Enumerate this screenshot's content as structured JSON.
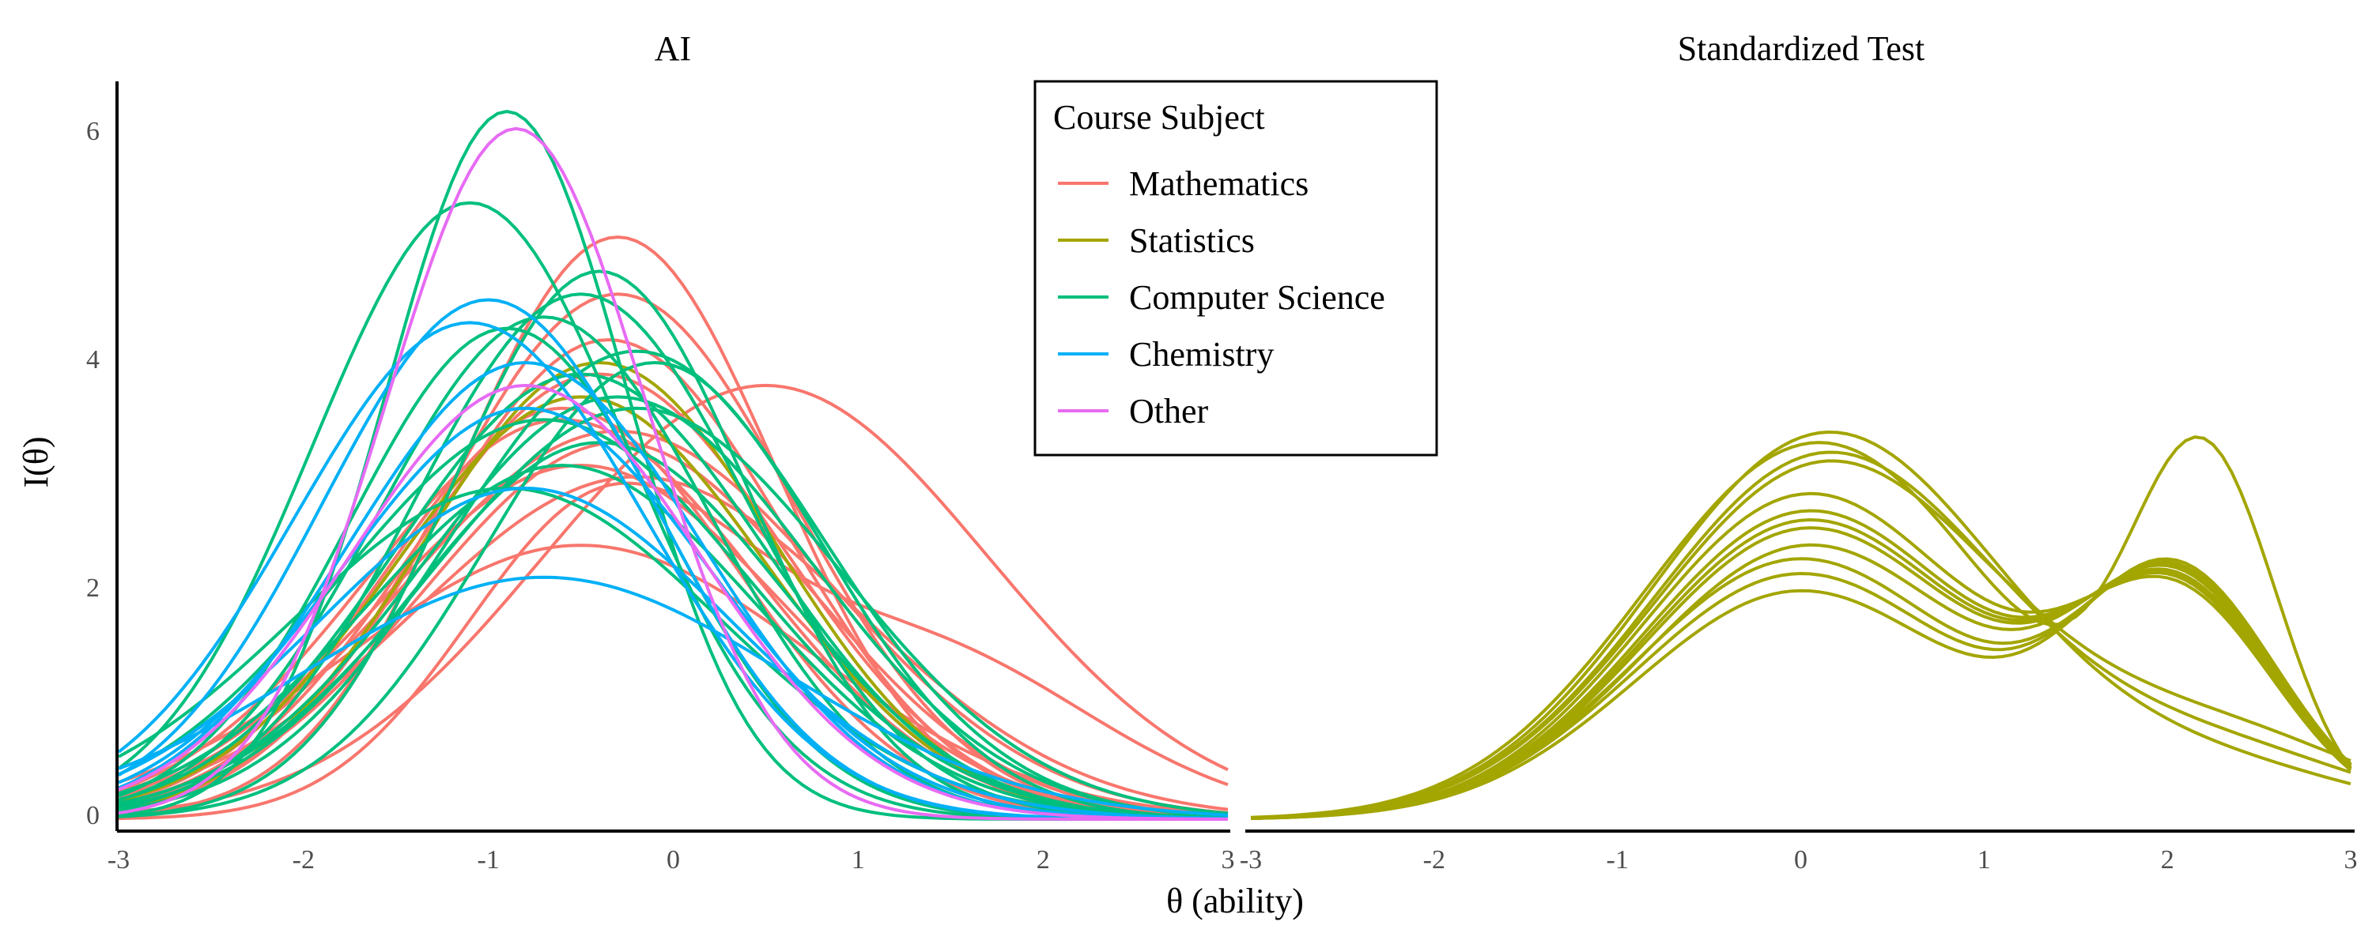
{
  "chart_data": {
    "type": "line",
    "y_axis_title": "I(θ)",
    "x_axis_title": "θ (ability)",
    "legend": {
      "title": "Course Subject",
      "placement": "top-center",
      "entries": [
        {
          "name": "Mathematics",
          "color": "#F8766D"
        },
        {
          "name": "Statistics",
          "color": "#A3A500"
        },
        {
          "name": "Computer Science",
          "color": "#00BF7D"
        },
        {
          "name": "Chemistry",
          "color": "#00B0F6"
        },
        {
          "name": "Other",
          "color": "#E76BF3"
        }
      ]
    },
    "xlim": [
      -3,
      3
    ],
    "ylim": [
      0,
      6.5
    ],
    "x_ticks": [
      -3,
      -2,
      -1,
      0,
      1,
      2,
      3
    ],
    "x_tick_labels": [
      "-3",
      "-2",
      "-1",
      "0",
      "1",
      "2",
      "3"
    ],
    "y_ticks": [
      0,
      2,
      4,
      6
    ],
    "y_tick_labels": [
      "0",
      "2",
      "4",
      "6"
    ],
    "grid": false,
    "panels": [
      {
        "title": "AI",
        "x_tick_labels": [
          "-3",
          "-2",
          "-1",
          "0",
          "1",
          "2",
          "3"
        ],
        "series": [
          {
            "subject": "Mathematics",
            "components": [
              [
                5.1,
                -0.3,
                0.85
              ]
            ]
          },
          {
            "subject": "Mathematics",
            "components": [
              [
                4.6,
                -0.3,
                0.95
              ]
            ]
          },
          {
            "subject": "Mathematics",
            "components": [
              [
                4.2,
                -0.35,
                0.95
              ]
            ]
          },
          {
            "subject": "Mathematics",
            "components": [
              [
                3.9,
                -0.4,
                1.0
              ]
            ]
          },
          {
            "subject": "Mathematics",
            "components": [
              [
                3.7,
                -0.5,
                1.0
              ]
            ]
          },
          {
            "subject": "Mathematics",
            "components": [
              [
                3.5,
                -0.6,
                1.05
              ]
            ]
          },
          {
            "subject": "Mathematics",
            "components": [
              [
                3.3,
                -0.3,
                1.05
              ]
            ]
          },
          {
            "subject": "Mathematics",
            "components": [
              [
                3.1,
                -0.5,
                1.1
              ]
            ]
          },
          {
            "subject": "Mathematics",
            "components": [
              [
                2.6,
                -0.4,
                0.75
              ],
              [
                1.5,
                1.3,
                0.95
              ]
            ]
          },
          {
            "subject": "Mathematics",
            "components": [
              [
                2.4,
                -0.5,
                1.25
              ]
            ]
          },
          {
            "subject": "Mathematics",
            "components": [
              [
                3.8,
                0.5,
                1.2
              ]
            ]
          },
          {
            "subject": "Mathematics",
            "components": [
              [
                3.0,
                -0.2,
                1.2
              ]
            ]
          },
          {
            "subject": "Mathematics",
            "components": [
              [
                3.6,
                -0.6,
                0.95
              ]
            ]
          },
          {
            "subject": "Mathematics",
            "components": [
              [
                3.4,
                -0.3,
                1.15
              ]
            ]
          },
          {
            "subject": "Statistics",
            "components": [
              [
                4.0,
                -0.4,
                0.95
              ]
            ]
          },
          {
            "subject": "Statistics",
            "components": [
              [
                3.7,
                -0.5,
                1.0
              ]
            ]
          },
          {
            "subject": "Computer Science",
            "components": [
              [
                6.2,
                -0.9,
                0.65
              ]
            ]
          },
          {
            "subject": "Computer Science",
            "components": [
              [
                5.4,
                -1.1,
                0.85
              ]
            ]
          },
          {
            "subject": "Computer Science",
            "components": [
              [
                4.8,
                -0.4,
                0.8
              ]
            ]
          },
          {
            "subject": "Computer Science",
            "components": [
              [
                4.6,
                -0.5,
                0.9
              ]
            ]
          },
          {
            "subject": "Computer Science",
            "components": [
              [
                4.4,
                -0.7,
                0.9
              ]
            ]
          },
          {
            "subject": "Computer Science",
            "components": [
              [
                4.3,
                -0.9,
                0.85
              ]
            ]
          },
          {
            "subject": "Computer Science",
            "components": [
              [
                4.1,
                -0.2,
                1.0
              ]
            ]
          },
          {
            "subject": "Computer Science",
            "components": [
              [
                3.9,
                -0.5,
                1.0
              ]
            ]
          },
          {
            "subject": "Computer Science",
            "components": [
              [
                3.7,
                -0.3,
                1.05
              ]
            ]
          },
          {
            "subject": "Computer Science",
            "components": [
              [
                3.5,
                -0.7,
                1.1
              ]
            ]
          },
          {
            "subject": "Computer Science",
            "components": [
              [
                3.3,
                -0.4,
                1.0
              ]
            ]
          },
          {
            "subject": "Computer Science",
            "components": [
              [
                3.1,
                -0.6,
                1.05
              ]
            ]
          },
          {
            "subject": "Computer Science",
            "components": [
              [
                2.9,
                -0.9,
                1.15
              ]
            ]
          },
          {
            "subject": "Computer Science",
            "components": [
              [
                4.0,
                -0.1,
                0.9
              ]
            ]
          },
          {
            "subject": "Computer Science",
            "components": [
              [
                3.6,
                -0.2,
                1.1
              ]
            ]
          },
          {
            "subject": "Chemistry",
            "components": [
              [
                4.55,
                -1.0,
                0.9
              ]
            ]
          },
          {
            "subject": "Chemistry",
            "components": [
              [
                4.35,
                -1.1,
                0.95
              ]
            ]
          },
          {
            "subject": "Chemistry",
            "components": [
              [
                4.0,
                -0.8,
                0.95
              ]
            ]
          },
          {
            "subject": "Chemistry",
            "components": [
              [
                3.6,
                -0.8,
                1.0
              ]
            ]
          },
          {
            "subject": "Chemistry",
            "components": [
              [
                2.9,
                -0.8,
                1.1
              ]
            ]
          },
          {
            "subject": "Chemistry",
            "components": [
              [
                2.12,
                -0.7,
                1.3
              ]
            ]
          },
          {
            "subject": "Other",
            "components": [
              [
                6.05,
                -0.85,
                0.7
              ]
            ]
          },
          {
            "subject": "Other",
            "components": [
              [
                3.8,
                -0.8,
                0.95
              ]
            ]
          }
        ]
      },
      {
        "title": "Standardized Test",
        "x_tick_labels": [
          "-3",
          "-2",
          "-1",
          "0",
          "1",
          "2",
          "3"
        ],
        "series": [
          {
            "subject": "Statistics",
            "components": [
              [
                3.3,
                0.1,
                0.95
              ],
              [
                3.05,
                2.2,
                0.4
              ]
            ]
          },
          {
            "subject": "Statistics",
            "components": [
              [
                3.38,
                0.15,
                0.95
              ],
              [
                0.4,
                2.3,
                0.8
              ]
            ]
          },
          {
            "subject": "Statistics",
            "components": [
              [
                3.2,
                0.15,
                0.95
              ],
              [
                0.55,
                2.3,
                0.8
              ]
            ]
          },
          {
            "subject": "Statistics",
            "components": [
              [
                3.12,
                0.15,
                0.95
              ],
              [
                0.7,
                2.3,
                0.8
              ]
            ]
          },
          {
            "subject": "Statistics",
            "components": [
              [
                2.85,
                0.05,
                0.9
              ],
              [
                1.85,
                2.05,
                0.55
              ]
            ]
          },
          {
            "subject": "Statistics",
            "components": [
              [
                2.7,
                0.05,
                0.9
              ],
              [
                1.9,
                2.05,
                0.55
              ]
            ]
          },
          {
            "subject": "Statistics",
            "components": [
              [
                2.55,
                0.05,
                0.9
              ],
              [
                1.95,
                2.05,
                0.55
              ]
            ]
          },
          {
            "subject": "Statistics",
            "components": [
              [
                2.4,
                0.05,
                0.9
              ],
              [
                2.0,
                2.05,
                0.55
              ]
            ]
          },
          {
            "subject": "Statistics",
            "components": [
              [
                2.28,
                0.0,
                0.9
              ],
              [
                2.05,
                2.05,
                0.55
              ]
            ]
          },
          {
            "subject": "Statistics",
            "components": [
              [
                2.15,
                0.0,
                0.9
              ],
              [
                2.08,
                2.05,
                0.55
              ]
            ]
          },
          {
            "subject": "Statistics",
            "components": [
              [
                2.0,
                0.0,
                0.9
              ],
              [
                2.12,
                2.05,
                0.55
              ]
            ]
          },
          {
            "subject": "Statistics",
            "components": [
              [
                2.62,
                0.05,
                0.9
              ],
              [
                1.93,
                2.05,
                0.55
              ]
            ]
          }
        ]
      }
    ]
  }
}
